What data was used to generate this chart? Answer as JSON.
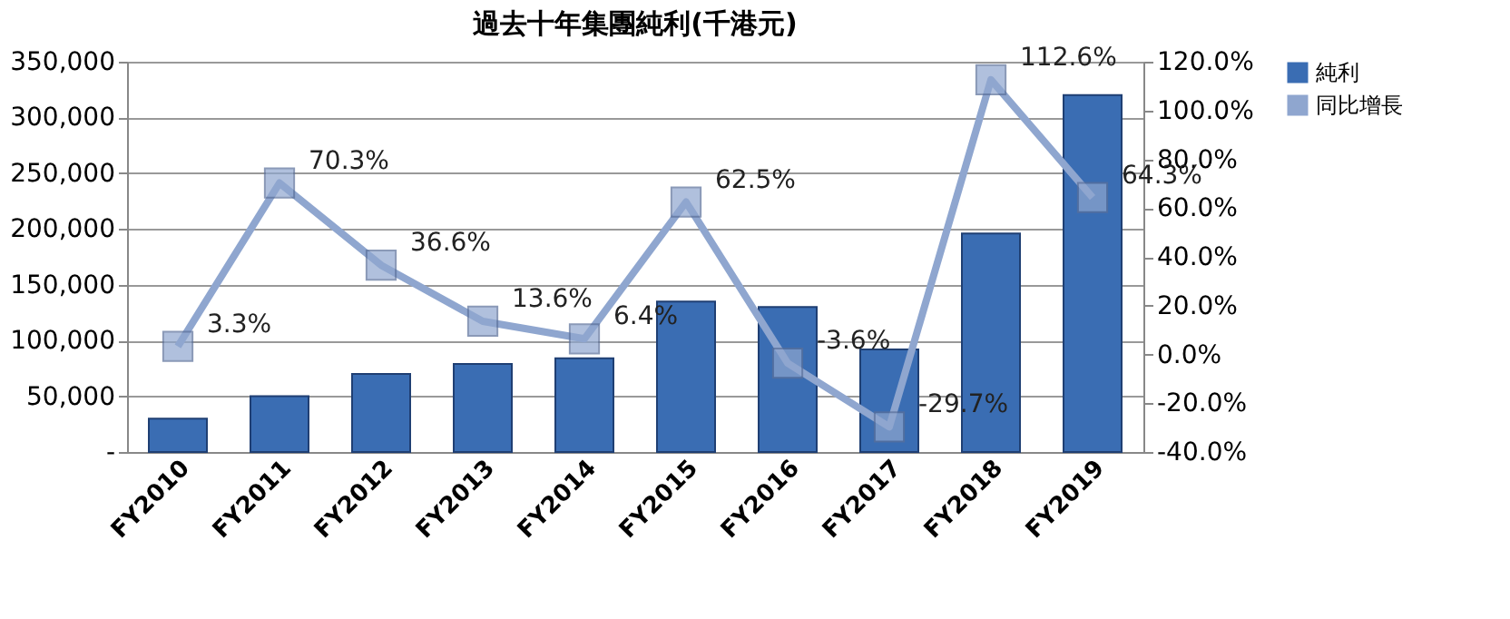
{
  "chart_data": {
    "type": "bar",
    "title": "過去十年集團純利(千港元)",
    "categories": [
      "FY2010",
      "FY2011",
      "FY2012",
      "FY2013",
      "FY2014",
      "FY2015",
      "FY2016",
      "FY2017",
      "FY2018",
      "FY2019"
    ],
    "series": [
      {
        "name": "純利",
        "color": "#3a6db3",
        "values": [
          30000,
          50000,
          70000,
          79000,
          84000,
          135000,
          130000,
          92000,
          196000,
          320000
        ]
      },
      {
        "name": "同比增長",
        "type": "line",
        "axis": "y2",
        "color": "#8fa6cf",
        "marker": "square",
        "values": [
          3.3,
          70.3,
          36.6,
          13.6,
          6.4,
          62.5,
          -3.6,
          -29.7,
          112.6,
          64.3
        ],
        "value_labels": [
          "3.3%",
          "70.3%",
          "36.6%",
          "13.6%",
          "6.4%",
          "62.5%",
          "-3.6%",
          "-29.7%",
          "112.6%",
          "64.3%"
        ]
      }
    ],
    "ylim": [
      0,
      350000
    ],
    "yticks": [
      {
        "value": 0,
        "label": "-"
      },
      {
        "value": 50000,
        "label": "50,000"
      },
      {
        "value": 100000,
        "label": "100,000"
      },
      {
        "value": 150000,
        "label": "150,000"
      },
      {
        "value": 200000,
        "label": "200,000"
      },
      {
        "value": 250000,
        "label": "250,000"
      },
      {
        "value": 300000,
        "label": "300,000"
      },
      {
        "value": 350000,
        "label": "350,000"
      }
    ],
    "y2lim": [
      -40,
      120
    ],
    "y2ticks": [
      {
        "value": -40,
        "label": "-40.0%"
      },
      {
        "value": -20,
        "label": "-20.0%"
      },
      {
        "value": 0,
        "label": "0.0%"
      },
      {
        "value": 20,
        "label": "20.0%"
      },
      {
        "value": 40,
        "label": "40.0%"
      },
      {
        "value": 60,
        "label": "60.0%"
      },
      {
        "value": 80,
        "label": "80.0%"
      },
      {
        "value": 100,
        "label": "100.0%"
      },
      {
        "value": 120,
        "label": "120.0%"
      }
    ],
    "grid": "y",
    "legend": "right"
  }
}
